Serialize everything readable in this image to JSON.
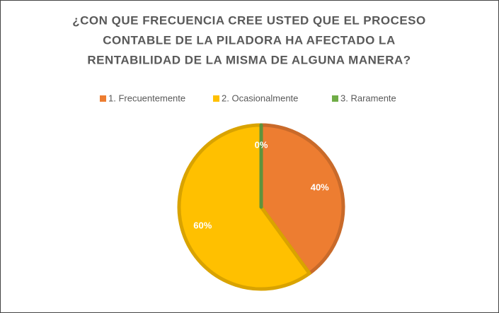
{
  "chart_data": {
    "type": "pie",
    "title": [
      "¿CON QUE FRECUENCIA CREE USTED QUE EL PROCESO",
      "CONTABLE DE LA PILADORA HA AFECTADO LA",
      "RENTABILIDAD DE LA MISMA DE ALGUNA MANERA?"
    ],
    "categories": [
      "1. Frecuentemente",
      "2. Ocasionalmente",
      "3. Raramente"
    ],
    "values": [
      40,
      60,
      0
    ],
    "value_labels": [
      "40%",
      "60%",
      "0%"
    ],
    "colors": [
      "#ed7d31",
      "#ffc000",
      "#70ad47"
    ],
    "legend": "top"
  }
}
